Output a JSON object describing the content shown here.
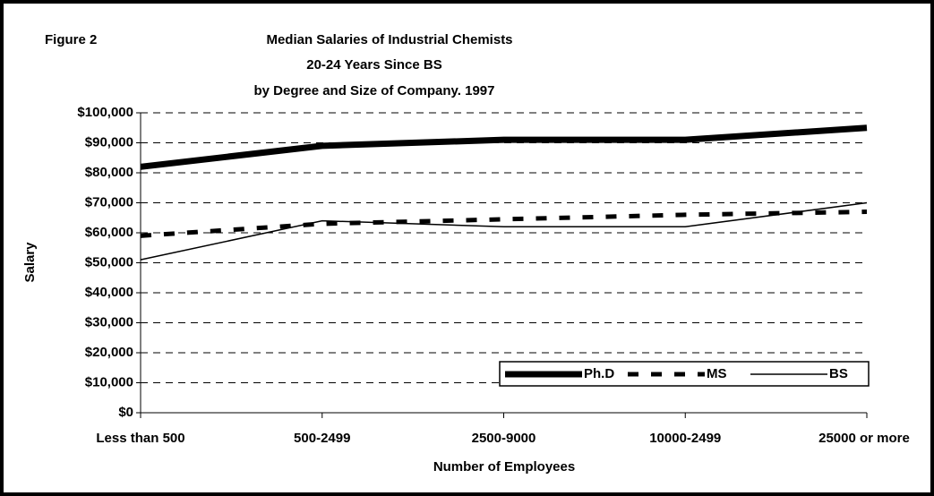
{
  "chart_data": {
    "type": "line",
    "figure_label": "Figure 2",
    "title": [
      "Median Salaries of Industrial Chemists",
      "20-24 Years Since BS",
      "by Degree and Size of Company. 1997"
    ],
    "x_label": "Number of Employees",
    "y_label": "Salary",
    "categories": [
      "Less than 500",
      "500-2499",
      "2500-9000",
      "10000-2499",
      "25000 or more"
    ],
    "series": [
      {
        "name": "Ph.D",
        "color": "#000000",
        "style": "thick",
        "values": [
          82000,
          89000,
          91000,
          91000,
          95000
        ]
      },
      {
        "name": "MS",
        "color": "#000000",
        "style": "dashed",
        "values": [
          59000,
          63000,
          64500,
          66000,
          67000
        ]
      },
      {
        "name": "BS",
        "color": "#000000",
        "style": "thin",
        "values": [
          51000,
          64000,
          62000,
          62000,
          70000
        ]
      }
    ],
    "ylim": [
      0,
      100000
    ],
    "yticks": [
      {
        "value": 0,
        "label": "$0"
      },
      {
        "value": 10000,
        "label": "$10,000"
      },
      {
        "value": 20000,
        "label": "$20,000"
      },
      {
        "value": 30000,
        "label": "$30,000"
      },
      {
        "value": 40000,
        "label": "$40,000"
      },
      {
        "value": 50000,
        "label": "$50,000"
      },
      {
        "value": 60000,
        "label": "$60,000"
      },
      {
        "value": 70000,
        "label": "$70,000"
      },
      {
        "value": 80000,
        "label": "$80,000"
      },
      {
        "value": 90000,
        "label": "$90,000"
      },
      {
        "value": 100000,
        "label": "$100,000"
      }
    ],
    "grid": true,
    "legend": "lower right"
  }
}
